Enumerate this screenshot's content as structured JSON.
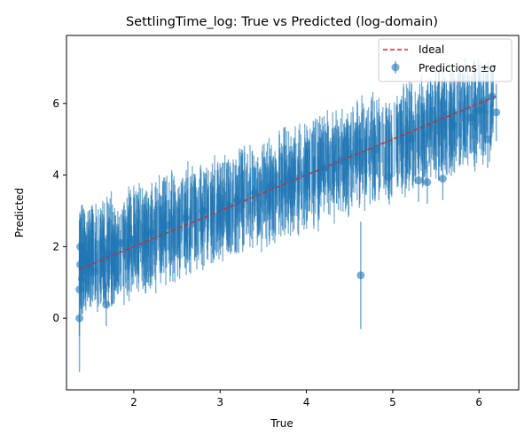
{
  "chart_data": {
    "type": "scatter",
    "title": "SettlingTime_log: True vs Predicted (log-domain)",
    "xlabel": "True",
    "ylabel": "Predicted",
    "xlim": [
      1.22,
      6.46
    ],
    "ylim": [
      -2.0,
      7.9
    ],
    "xticks": [
      2,
      3,
      4,
      5,
      6
    ],
    "yticks": [
      0,
      2,
      4,
      6
    ],
    "grid": false,
    "legend_position": "top-right",
    "colors": {
      "points": "#1f77b4",
      "ideal": "#d62728"
    },
    "series": [
      {
        "name": "Ideal",
        "style": "dashed-line",
        "x": [
          1.37,
          6.2
        ],
        "y": [
          1.37,
          6.2
        ]
      },
      {
        "name": "Predictions ±σ",
        "style": "errorbar-points",
        "points": [
          {
            "x": 1.37,
            "y": 0.0,
            "err": 1.5
          },
          {
            "x": 1.37,
            "y": 0.8,
            "err": 1.3
          },
          {
            "x": 1.38,
            "y": 1.5,
            "err": 1.2
          },
          {
            "x": 1.38,
            "y": 2.0,
            "err": 0.9
          },
          {
            "x": 1.4,
            "y": 1.1,
            "err": 1.0
          },
          {
            "x": 1.45,
            "y": 1.6,
            "err": 0.7
          },
          {
            "x": 1.55,
            "y": 1.3,
            "err": 0.8
          },
          {
            "x": 1.68,
            "y": 0.38,
            "err": 0.6
          },
          {
            "x": 1.7,
            "y": 1.8,
            "err": 0.9
          },
          {
            "x": 1.85,
            "y": 2.1,
            "err": 0.8
          },
          {
            "x": 2.0,
            "y": 2.2,
            "err": 0.7
          },
          {
            "x": 2.2,
            "y": 2.4,
            "err": 0.7
          },
          {
            "x": 2.4,
            "y": 2.6,
            "err": 0.7
          },
          {
            "x": 2.6,
            "y": 2.8,
            "err": 0.7
          },
          {
            "x": 2.8,
            "y": 3.0,
            "err": 0.7
          },
          {
            "x": 3.0,
            "y": 3.1,
            "err": 0.7
          },
          {
            "x": 3.2,
            "y": 3.3,
            "err": 0.7
          },
          {
            "x": 3.4,
            "y": 3.5,
            "err": 0.7
          },
          {
            "x": 3.6,
            "y": 3.7,
            "err": 0.7
          },
          {
            "x": 3.8,
            "y": 3.9,
            "err": 0.7
          },
          {
            "x": 4.0,
            "y": 4.0,
            "err": 0.7
          },
          {
            "x": 4.2,
            "y": 4.2,
            "err": 0.7
          },
          {
            "x": 4.4,
            "y": 4.4,
            "err": 0.7
          },
          {
            "x": 4.63,
            "y": 1.2,
            "err": 1.5
          },
          {
            "x": 4.8,
            "y": 4.7,
            "err": 0.7
          },
          {
            "x": 4.95,
            "y": 3.95,
            "err": 0.6
          },
          {
            "x": 5.2,
            "y": 5.0,
            "err": 0.8
          },
          {
            "x": 5.3,
            "y": 3.85,
            "err": 0.6
          },
          {
            "x": 5.4,
            "y": 3.8,
            "err": 0.6
          },
          {
            "x": 5.58,
            "y": 3.9,
            "err": 0.6
          },
          {
            "x": 5.7,
            "y": 5.4,
            "err": 0.9
          },
          {
            "x": 5.9,
            "y": 5.6,
            "err": 0.9
          },
          {
            "x": 6.0,
            "y": 5.8,
            "err": 0.9
          },
          {
            "x": 6.1,
            "y": 5.0,
            "err": 0.8
          },
          {
            "x": 6.15,
            "y": 6.2,
            "err": 0.9
          },
          {
            "x": 6.2,
            "y": 5.75,
            "err": 0.8
          }
        ]
      }
    ]
  }
}
